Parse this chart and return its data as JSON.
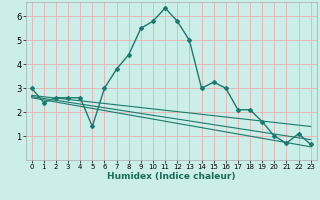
{
  "xlabel": "Humidex (Indice chaleur)",
  "ylabel": "",
  "background_color": "#cceee8",
  "grid_color": "#e8b0b0",
  "line_color": "#1a7a6e",
  "xlim": [
    -0.5,
    23.5
  ],
  "ylim": [
    0,
    6.6
  ],
  "xticks": [
    0,
    1,
    2,
    3,
    4,
    5,
    6,
    7,
    8,
    9,
    10,
    11,
    12,
    13,
    14,
    15,
    16,
    17,
    18,
    19,
    20,
    21,
    22,
    23
  ],
  "yticks": [
    1,
    2,
    3,
    4,
    5,
    6
  ],
  "main_line": {
    "x": [
      0,
      1,
      2,
      3,
      4,
      5,
      6,
      7,
      8,
      9,
      10,
      11,
      12,
      13,
      14,
      15,
      16,
      17,
      18,
      19,
      20,
      21,
      22,
      23
    ],
    "y": [
      3.0,
      2.4,
      2.6,
      2.6,
      2.6,
      1.4,
      3.0,
      3.8,
      4.4,
      5.5,
      5.8,
      6.35,
      5.8,
      5.0,
      3.0,
      3.25,
      3.0,
      2.1,
      2.1,
      1.6,
      1.0,
      0.7,
      1.1,
      0.65
    ]
  },
  "trend_line1": {
    "x": [
      0,
      23
    ],
    "y": [
      2.7,
      1.4
    ]
  },
  "trend_line2": {
    "x": [
      0,
      23
    ],
    "y": [
      2.65,
      0.85
    ]
  },
  "trend_line3": {
    "x": [
      0,
      23
    ],
    "y": [
      2.6,
      0.55
    ]
  }
}
